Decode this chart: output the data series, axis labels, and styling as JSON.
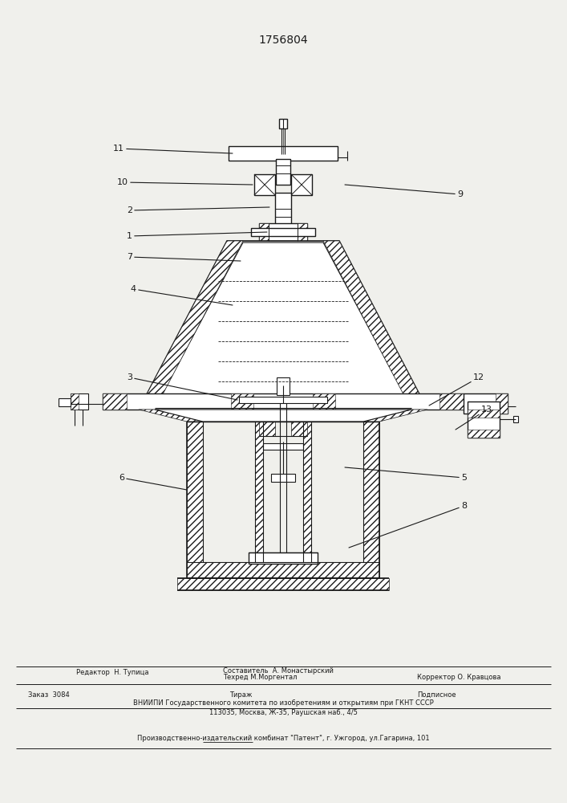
{
  "title": "1756804",
  "bg_color": "#f0f0ec",
  "line_color": "#1a1a1a",
  "footer_line1_left": "Редактор  Н. Тупица",
  "footer_line1_mid1": "Составитель  А. Монастырский",
  "footer_line1_mid2": "Техред М.Моргентал",
  "footer_line1_right": "Корректор О. Кравцова",
  "footer_line2_left": "Заказ  3084",
  "footer_line2_mid": "Тираж",
  "footer_line2_right": "Подписное",
  "footer_line3": "ВНИИПИ Государственного комитета по изобретениям и открытиям при ГКНТ СССР",
  "footer_line4": "113035, Москва, Ж-35, Раушская наб., 4/5",
  "footer_line5": "Производственно-издательский комбинат \"Патент\", г. Ужгород, ул.Гагарина, 101"
}
